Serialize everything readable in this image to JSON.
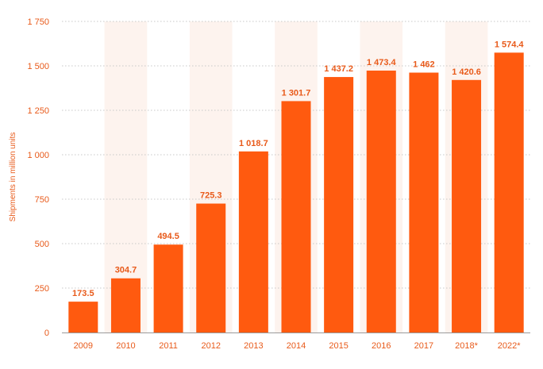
{
  "chart_data": {
    "type": "bar",
    "title": "",
    "xlabel": "",
    "ylabel": "Shipments in million units",
    "categories": [
      "2009",
      "2010",
      "2011",
      "2012",
      "2013",
      "2014",
      "2015",
      "2016",
      "2017",
      "2018*",
      "2022*"
    ],
    "values": [
      173.5,
      304.7,
      494.5,
      725.3,
      1018.7,
      1301.7,
      1437.2,
      1473.4,
      1462,
      1420.6,
      1574.4
    ],
    "value_labels": [
      "173.5",
      "304.7",
      "494.5",
      "725.3",
      "1 018.7",
      "1 301.7",
      "1 437.2",
      "1 473.4",
      "1 462",
      "1 420.6",
      "1 574.4"
    ],
    "ylim": [
      0,
      1750
    ],
    "yticks": [
      0,
      250,
      500,
      750,
      1000,
      1250,
      1500,
      1750
    ],
    "ytick_labels": [
      "0",
      "250",
      "500",
      "750",
      "1 000",
      "1 250",
      "1 500",
      "1 750"
    ],
    "grid": true,
    "grid_style": "dotted",
    "alternating_column_bands": true,
    "colors": {
      "bar": "#ff5a0f",
      "text": "#e85a1a",
      "grid": "#c8c8c8",
      "band": "#fdf3ee",
      "axis": "#9a9a9a"
    }
  }
}
